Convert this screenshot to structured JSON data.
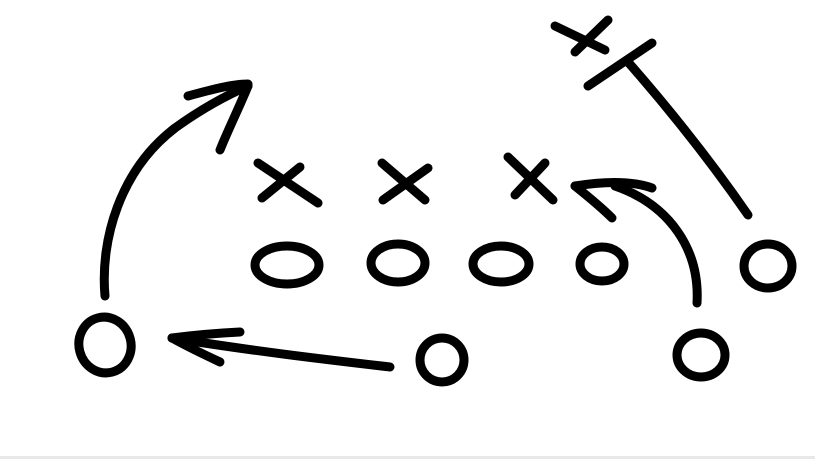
{
  "diagram": {
    "kind": "football-play-drawing",
    "ink_color": "#000000",
    "background_color": "#ffffff",
    "defense": {
      "symbol": "X",
      "players": [
        "defender-left",
        "defender-middle",
        "defender-right",
        "defender-deep-right"
      ]
    },
    "offense": {
      "symbol": "O",
      "players": [
        "lineman-1",
        "lineman-2",
        "lineman-3",
        "lineman-4",
        "receiver-right-end",
        "receiver-left",
        "quarterback",
        "back-right"
      ]
    },
    "routes": [
      {
        "from": "receiver-left",
        "type": "deep-arrow"
      },
      {
        "from": "quarterback",
        "type": "pass-arrow",
        "to": "receiver-left"
      },
      {
        "from": "back-right",
        "type": "curl-arrow",
        "to": "defender-right"
      },
      {
        "from": "receiver-right-end",
        "type": "block-line",
        "to": "defender-deep-right"
      }
    ]
  }
}
